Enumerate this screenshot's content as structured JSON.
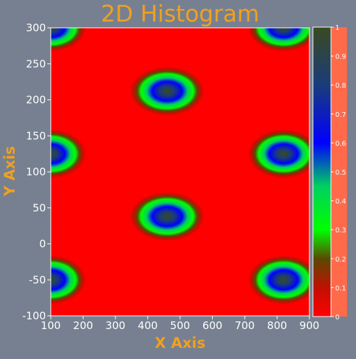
{
  "chart_data": {
    "type": "heatmap",
    "title": "2D Histogram",
    "xlabel": "X Axis",
    "ylabel": "Y Axis",
    "xlim": [
      100,
      900
    ],
    "ylim": [
      -100,
      300
    ],
    "x_ticks": [
      100,
      200,
      300,
      400,
      500,
      600,
      700,
      800,
      900
    ],
    "y_ticks": [
      -100,
      -50,
      0,
      50,
      100,
      150,
      200,
      250,
      300
    ],
    "colorbar": {
      "range": [
        0,
        1
      ],
      "ticks": [
        0,
        0.1,
        0.2,
        0.3,
        0.4,
        0.5,
        0.6,
        0.7,
        0.8,
        0.9,
        1
      ],
      "colormap": [
        {
          "v": 0.0,
          "color": "#ff0000"
        },
        {
          "v": 0.1,
          "color": "#c01000"
        },
        {
          "v": 0.2,
          "color": "#5a4a00"
        },
        {
          "v": 0.3,
          "color": "#00ff00"
        },
        {
          "v": 0.45,
          "color": "#00d060"
        },
        {
          "v": 0.6,
          "color": "#0000ff"
        },
        {
          "v": 0.8,
          "color": "#1a3c7a"
        },
        {
          "v": 1.0,
          "color": "#3a4a20"
        }
      ]
    },
    "blobs": [
      {
        "cx": 100,
        "cy": 300,
        "rx": 200,
        "ry": 60
      },
      {
        "cx": 820,
        "cy": 300,
        "rx": 200,
        "ry": 60
      },
      {
        "cx": 460,
        "cy": 212,
        "rx": 210,
        "ry": 62
      },
      {
        "cx": 100,
        "cy": 125,
        "rx": 200,
        "ry": 62
      },
      {
        "cx": 820,
        "cy": 125,
        "rx": 200,
        "ry": 62
      },
      {
        "cx": 460,
        "cy": 38,
        "rx": 210,
        "ry": 62
      },
      {
        "cx": 100,
        "cy": -50,
        "rx": 200,
        "ry": 62
      },
      {
        "cx": 820,
        "cy": -50,
        "rx": 200,
        "ry": 62
      }
    ],
    "background_value": 0,
    "background_color": "#ff0000",
    "colorbar_frame_color": "#ff6a4a"
  },
  "style": {
    "title_color": "#f0a020",
    "label_color": "#f0a020",
    "tick_color": "#ffffff",
    "page_background": "#768090"
  }
}
